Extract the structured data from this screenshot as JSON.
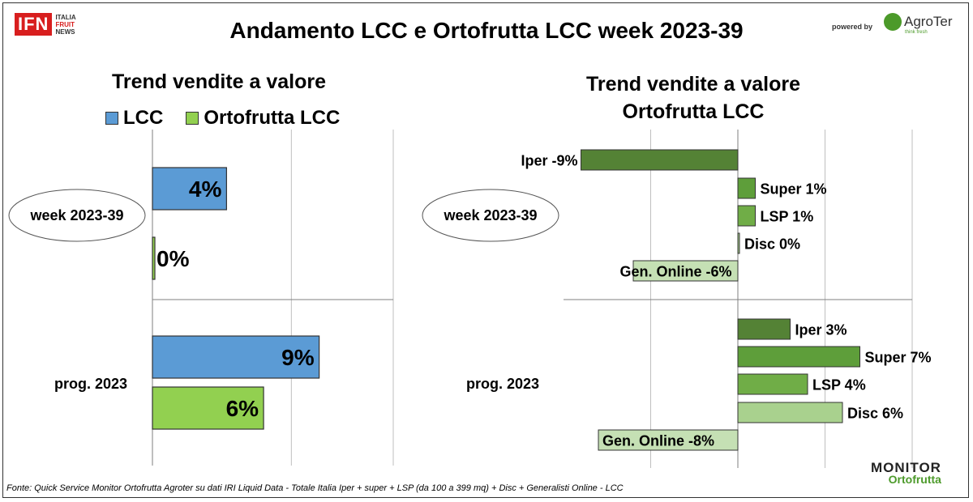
{
  "header": {
    "title": "Andamento LCC e Ortofrutta LCC week 2023-39",
    "logo_left_mark": "IFN",
    "logo_left_words": [
      "ITALIA",
      "FRUIT",
      "NEWS"
    ],
    "powered_by": "powered by",
    "logo_right_name": "AgroTer",
    "logo_right_tag": "think fresh"
  },
  "colors": {
    "lcc": "#5b9bd5",
    "ortofrutta_lcc": "#92d050",
    "iper": "#548235",
    "super": "#5e9e3a",
    "lsp": "#70ad47",
    "disc": "#a9d18e",
    "online": "#c5e0b4"
  },
  "footnote": "Fonte: Quick Service Monitor Ortofrutta Agroter su dati IRI Liquid Data - Totale Italia Iper + super + LSP (da 100 a 399 mq) + Disc + Generalisti Online - LCC",
  "monitor_logo": {
    "line1": "MONITOR",
    "line2": "Ortofrutta"
  },
  "chart_data": [
    {
      "type": "bar",
      "orientation": "horizontal",
      "title": "Trend vendite a valore",
      "categories": [
        "week 2023-39",
        "prog. 2023"
      ],
      "series": [
        {
          "name": "LCC",
          "values": [
            4,
            9
          ],
          "labels": [
            "4%",
            "9%"
          ]
        },
        {
          "name": "Ortofrutta LCC",
          "values": [
            0,
            6
          ],
          "labels": [
            "0%",
            "6%"
          ]
        }
      ],
      "xlim": [
        0,
        13
      ],
      "grid": true,
      "legend": "top"
    },
    {
      "type": "bar",
      "orientation": "horizontal",
      "title": "Trend vendite a valore\nOrtofrutta LCC",
      "title_lines": [
        "Trend vendite a valore",
        "Ortofrutta LCC"
      ],
      "categories": [
        "week 2023-39",
        "prog. 2023"
      ],
      "groups": [
        {
          "category": "week 2023-39",
          "bars": [
            {
              "channel": "Iper",
              "value": -9,
              "label": "Iper -9%"
            },
            {
              "channel": "Super",
              "value": 1,
              "label": "Super 1%"
            },
            {
              "channel": "LSP",
              "value": 1,
              "label": "LSP 1%"
            },
            {
              "channel": "Disc",
              "value": 0,
              "label": "Disc 0%"
            },
            {
              "channel": "Gen. Online",
              "value": -6,
              "label": "Gen. Online -6%"
            }
          ]
        },
        {
          "category": "prog. 2023",
          "bars": [
            {
              "channel": "Iper",
              "value": 3,
              "label": "Iper 3%"
            },
            {
              "channel": "Super",
              "value": 7,
              "label": "Super 7%"
            },
            {
              "channel": "LSP",
              "value": 4,
              "label": "LSP 4%"
            },
            {
              "channel": "Disc",
              "value": 6,
              "label": "Disc 6%"
            },
            {
              "channel": "Gen. Online",
              "value": -8,
              "label": "Gen. Online -8%"
            }
          ]
        }
      ],
      "xlim": [
        -10,
        10
      ],
      "grid": true,
      "legend": "none"
    }
  ]
}
